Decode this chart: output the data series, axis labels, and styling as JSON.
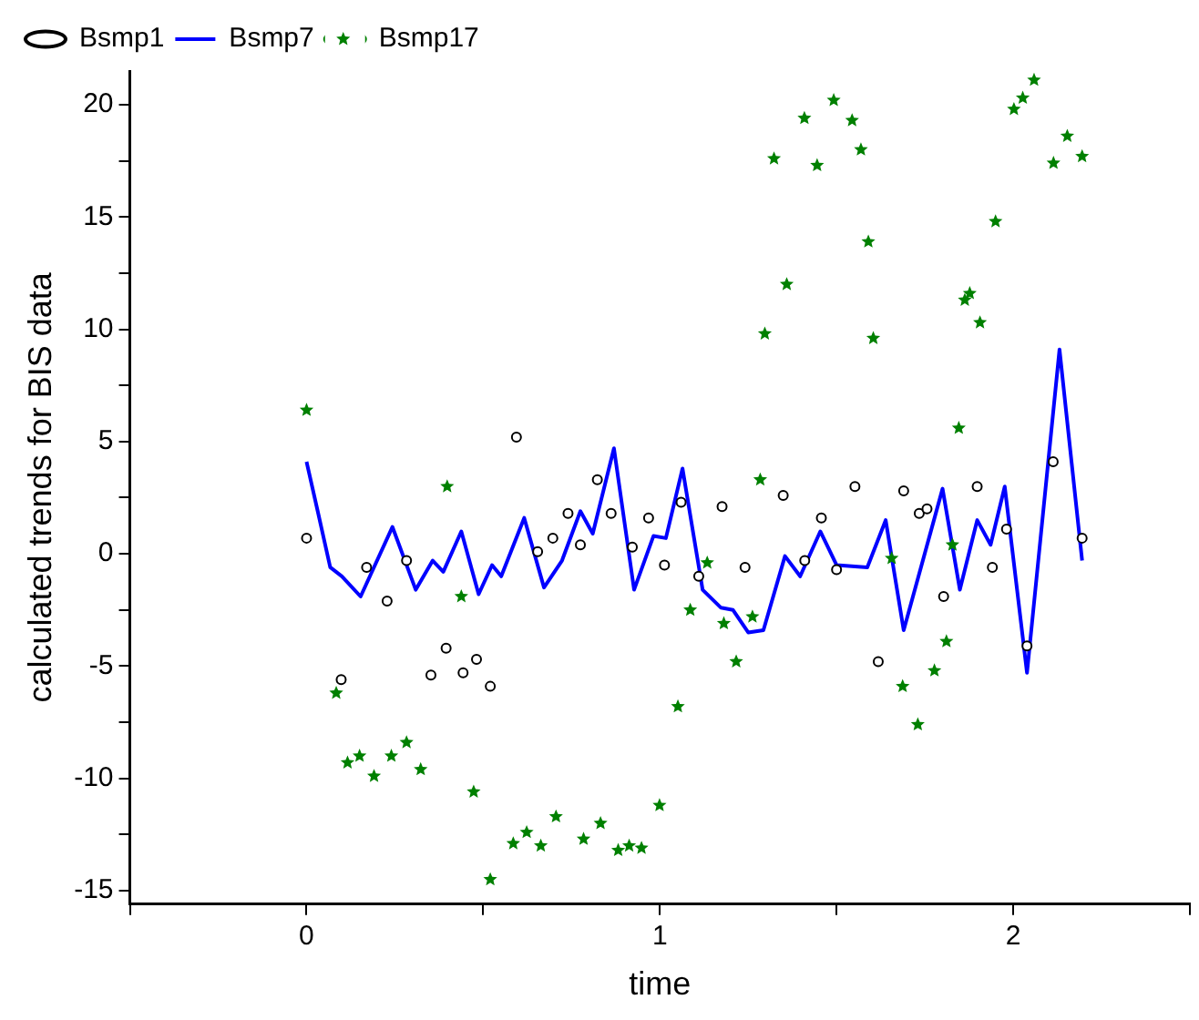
{
  "chart_data": {
    "type": "line",
    "xlabel": "time",
    "ylabel": "calculated trends for BIS data",
    "legend": "top left",
    "grid": false,
    "xlim": [
      -0.5,
      2.5
    ],
    "xticks": [
      {
        "value": -0.5,
        "label": null
      },
      0,
      {
        "value": 0.5,
        "label": null
      },
      1,
      {
        "value": 1.5,
        "label": null
      },
      2,
      {
        "value": 2.5,
        "label": null
      }
    ],
    "ylim": [
      -15.6,
      21.5
    ],
    "yticks": [
      -15,
      {
        "value": -12.5,
        "label": null
      },
      -10,
      {
        "value": -7.5,
        "label": null
      },
      -5,
      {
        "value": -2.5,
        "label": null
      },
      0,
      {
        "value": 2.5,
        "label": null
      },
      5,
      {
        "value": 7.5,
        "label": null
      },
      10,
      {
        "value": 12.5,
        "label": null
      },
      15,
      {
        "value": 17.5,
        "label": null
      },
      20
    ],
    "series": [
      {
        "name": "Bsmp1",
        "color": "#000000",
        "type": "scatter",
        "marker": "circle",
        "x": [
          0,
          0.098,
          0.17,
          0.228,
          0.283,
          0.352,
          0.395,
          0.443,
          0.481,
          0.52,
          0.594,
          0.654,
          0.697,
          0.74,
          0.775,
          0.823,
          0.862,
          0.922,
          0.968,
          1.013,
          1.06,
          1.11,
          1.176,
          1.241,
          1.349,
          1.41,
          1.457,
          1.5,
          1.552,
          1.618,
          1.69,
          1.734,
          1.756,
          1.803,
          1.898,
          1.941,
          1.981,
          2.039,
          2.113,
          2.195
        ],
        "values": [
          0.7,
          -5.6,
          -0.6,
          -2.1,
          -0.3,
          -5.4,
          -4.2,
          -5.3,
          -4.7,
          -5.9,
          5.2,
          0.1,
          0.7,
          1.8,
          0.4,
          3.3,
          1.8,
          0.3,
          1.6,
          -0.5,
          2.3,
          -1.0,
          2.1,
          -0.6,
          2.6,
          -0.3,
          1.6,
          -0.7,
          3.0,
          -4.8,
          2.8,
          1.8,
          2.0,
          -1.9,
          3.0,
          -0.6,
          1.1,
          -4.1,
          4.1,
          0.7
        ]
      },
      {
        "name": "Bsmp7",
        "color": "#0000ff",
        "type": "line",
        "marker": "none",
        "x": [
          0,
          0.033,
          0.067,
          0.1,
          0.153,
          0.243,
          0.309,
          0.357,
          0.387,
          0.438,
          0.487,
          0.525,
          0.551,
          0.616,
          0.672,
          0.723,
          0.775,
          0.81,
          0.87,
          0.927,
          0.982,
          1.017,
          1.064,
          1.121,
          1.173,
          1.207,
          1.25,
          1.293,
          1.354,
          1.397,
          1.454,
          1.5,
          1.587,
          1.639,
          1.69,
          1.8,
          1.849,
          1.898,
          1.936,
          1.976,
          2.039,
          2.131,
          2.195
        ],
        "values": [
          4.1,
          1.8,
          -0.6,
          -1.0,
          -1.9,
          1.2,
          -1.6,
          -0.3,
          -0.8,
          1.0,
          -1.8,
          -0.5,
          -1.0,
          1.6,
          -1.5,
          -0.3,
          1.9,
          0.9,
          4.7,
          -1.6,
          0.8,
          0.7,
          3.8,
          -1.6,
          -2.4,
          -2.5,
          -3.5,
          -3.4,
          -0.1,
          -1.0,
          1.0,
          -0.5,
          -0.6,
          1.5,
          -3.4,
          2.9,
          -1.6,
          1.5,
          0.4,
          3.0,
          -5.3,
          9.1,
          -0.3
        ]
      },
      {
        "name": "Bsmp17",
        "color": "#008000",
        "type": "scatter",
        "marker": "star",
        "x": [
          0,
          0.084,
          0.116,
          0.15,
          0.191,
          0.24,
          0.283,
          0.323,
          0.398,
          0.438,
          0.473,
          0.52,
          0.585,
          0.623,
          0.663,
          0.706,
          0.784,
          0.832,
          0.882,
          0.913,
          0.948,
          0.999,
          1.051,
          1.086,
          1.134,
          1.181,
          1.216,
          1.262,
          1.284,
          1.297,
          1.323,
          1.359,
          1.409,
          1.445,
          1.492,
          1.544,
          1.569,
          1.59,
          1.604,
          1.656,
          1.687,
          1.73,
          1.777,
          1.811,
          1.828,
          1.846,
          1.863,
          1.877,
          1.906,
          1.95,
          2.002,
          2.027,
          2.059,
          2.114,
          2.153,
          2.195
        ],
        "values": [
          6.4,
          -6.2,
          -9.3,
          -9.0,
          -9.9,
          -9.0,
          -8.4,
          -9.6,
          3.0,
          -1.9,
          -10.6,
          -14.5,
          -12.9,
          -12.4,
          -13.0,
          -11.7,
          -12.7,
          -12.0,
          -13.2,
          -13.0,
          -13.1,
          -11.2,
          -6.8,
          -2.5,
          -0.4,
          -3.1,
          -4.8,
          -2.8,
          3.3,
          9.8,
          17.6,
          12.0,
          19.4,
          17.3,
          20.2,
          19.3,
          18.0,
          13.9,
          9.6,
          -0.2,
          -5.9,
          -7.6,
          -5.2,
          -3.9,
          0.4,
          5.6,
          11.3,
          11.6,
          10.3,
          14.8,
          19.8,
          20.3,
          21.1,
          17.4,
          18.6,
          17.7
        ]
      }
    ]
  }
}
